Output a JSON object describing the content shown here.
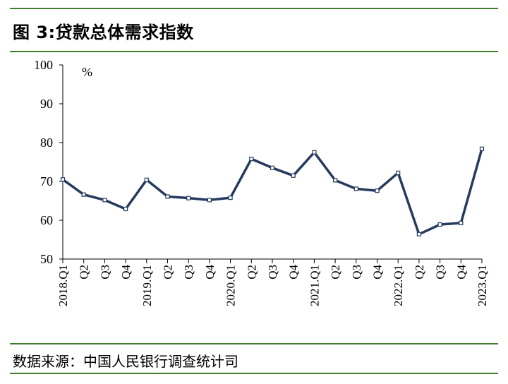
{
  "title": "图 3:贷款总体需求指数",
  "source": "数据来源：中国人民银行调查统计司",
  "chart_data": {
    "type": "line",
    "unit_label": "%",
    "ylim": [
      50,
      100
    ],
    "yticks": [
      "100",
      "90",
      "80",
      "70",
      "60",
      "50"
    ],
    "categories": [
      "2018.Q1",
      "Q2",
      "Q3",
      "Q4",
      "2019.Q1",
      "Q2",
      "Q3",
      "Q4",
      "2020.Q1",
      "Q2",
      "Q3",
      "Q4",
      "2021.Q1",
      "Q2",
      "Q3",
      "Q4",
      "2022.Q1",
      "Q2",
      "Q3",
      "Q4",
      "2023.Q1"
    ],
    "series": [
      {
        "values": [
          70.5,
          66.6,
          65.2,
          62.9,
          70.4,
          66.1,
          65.7,
          65.2,
          65.8,
          75.8,
          73.5,
          71.5,
          77.5,
          70.3,
          68.1,
          67.6,
          72.2,
          56.4,
          58.9,
          59.3,
          78.4
        ]
      }
    ],
    "colors": {
      "line": "#243b5e",
      "rule": "#3f7f2a"
    }
  }
}
